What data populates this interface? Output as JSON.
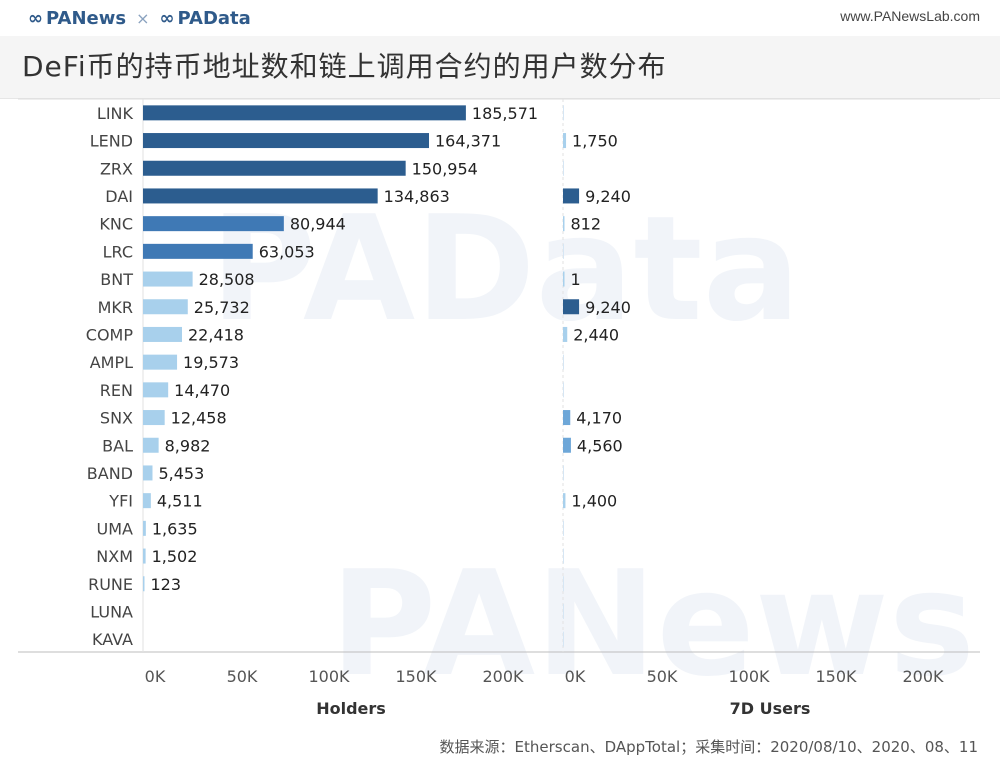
{
  "header": {
    "brand_left": "PANews",
    "brand_separator": "×",
    "brand_right": "PAData",
    "site_url": "www.PANewsLab.com",
    "title": "DeFi币的持币地址数和链上调用合约的用户数分布"
  },
  "watermarks": [
    "PAData",
    "PANews"
  ],
  "footer": {
    "source": "数据来源：Etherscan、DAppTotal；采集时间：2020/08/10、2020、08、11"
  },
  "colors": {
    "dark": "#2c5d8f",
    "mid": "#3f79b5",
    "light": "#6ea7d8",
    "pale": "#a8d0ec"
  },
  "chart_data": {
    "type": "bar",
    "orientation": "horizontal",
    "categories": [
      "LINK",
      "LEND",
      "ZRX",
      "DAI",
      "KNC",
      "LRC",
      "BNT",
      "MKR",
      "COMP",
      "AMPL",
      "REN",
      "SNX",
      "BAL",
      "BAND",
      "YFI",
      "UMA",
      "NXM",
      "RUNE",
      "LUNA",
      "KAVA"
    ],
    "panels": [
      {
        "name": "Holders",
        "xlabel": "Holders",
        "xlim": [
          0,
          250000
        ],
        "ticks": [
          "0K",
          "50K",
          "100K",
          "150K",
          "200K"
        ],
        "tick_values": [
          0,
          50000,
          100000,
          150000,
          200000
        ],
        "values": [
          185571,
          164371,
          150954,
          134863,
          80944,
          63053,
          28508,
          25732,
          22418,
          19573,
          14470,
          12458,
          8982,
          5453,
          4511,
          1635,
          1502,
          123,
          0,
          0
        ],
        "labels": [
          "185,571",
          "164,371",
          "150,954",
          "134,863",
          "80,944",
          "63,053",
          "28,508",
          "25,732",
          "22,418",
          "19,573",
          "14,470",
          "12,458",
          "8,982",
          "5,453",
          "4,511",
          "1,635",
          "1,502",
          "123",
          "",
          ""
        ]
      },
      {
        "name": "7D Users",
        "xlabel": "7D Users",
        "xlim": [
          0,
          250000
        ],
        "ticks": [
          "0K",
          "50K",
          "100K",
          "150K",
          "200K"
        ],
        "tick_values": [
          0,
          50000,
          100000,
          150000,
          200000
        ],
        "values": [
          0,
          1750,
          0,
          9240,
          812,
          0,
          1,
          9240,
          2440,
          0,
          0,
          4170,
          4560,
          0,
          1400,
          0,
          0,
          0,
          0,
          0
        ],
        "labels": [
          "",
          "1,750",
          "",
          "9,240",
          "812",
          "",
          "1",
          "9,240",
          "2,440",
          "",
          "",
          "4,170",
          "4,560",
          "",
          "1,400",
          "",
          "",
          "",
          "",
          ""
        ]
      }
    ],
    "grid": false,
    "legend": "none"
  }
}
